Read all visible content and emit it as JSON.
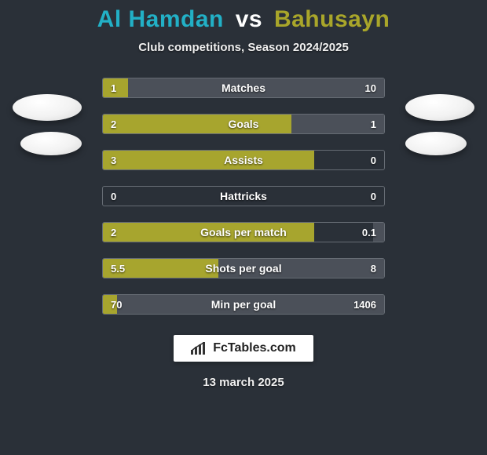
{
  "background_color": "#2a3038",
  "header": {
    "player1": "Al Hamdan",
    "vs": "vs",
    "player2": "Bahusayn",
    "player1_color": "#22b0c6",
    "vs_color": "#ffffff",
    "player2_color": "#a9a62a",
    "subtitle": "Club competitions, Season 2024/2025"
  },
  "bar_colors": {
    "player1_fill": "#a7a52e",
    "player2_fill": "#4b5059",
    "border": "#666c74",
    "track": "#2a3038"
  },
  "stats": [
    {
      "label": "Matches",
      "left_value": "1",
      "right_value": "10",
      "left_pct": 9,
      "right_pct": 91
    },
    {
      "label": "Goals",
      "left_value": "2",
      "right_value": "1",
      "left_pct": 67,
      "right_pct": 33
    },
    {
      "label": "Assists",
      "left_value": "3",
      "right_value": "0",
      "left_pct": 75,
      "right_pct": 0
    },
    {
      "label": "Hattricks",
      "left_value": "0",
      "right_value": "0",
      "left_pct": 0,
      "right_pct": 0
    },
    {
      "label": "Goals per match",
      "left_value": "2",
      "right_value": "0.1",
      "left_pct": 75,
      "right_pct": 4
    },
    {
      "label": "Shots per goal",
      "left_value": "5.5",
      "right_value": "8",
      "left_pct": 41,
      "right_pct": 59
    },
    {
      "label": "Min per goal",
      "left_value": "70",
      "right_value": "1406",
      "left_pct": 5,
      "right_pct": 95
    }
  ],
  "branding": {
    "text": "FcTables.com"
  },
  "date": "13 march 2025"
}
